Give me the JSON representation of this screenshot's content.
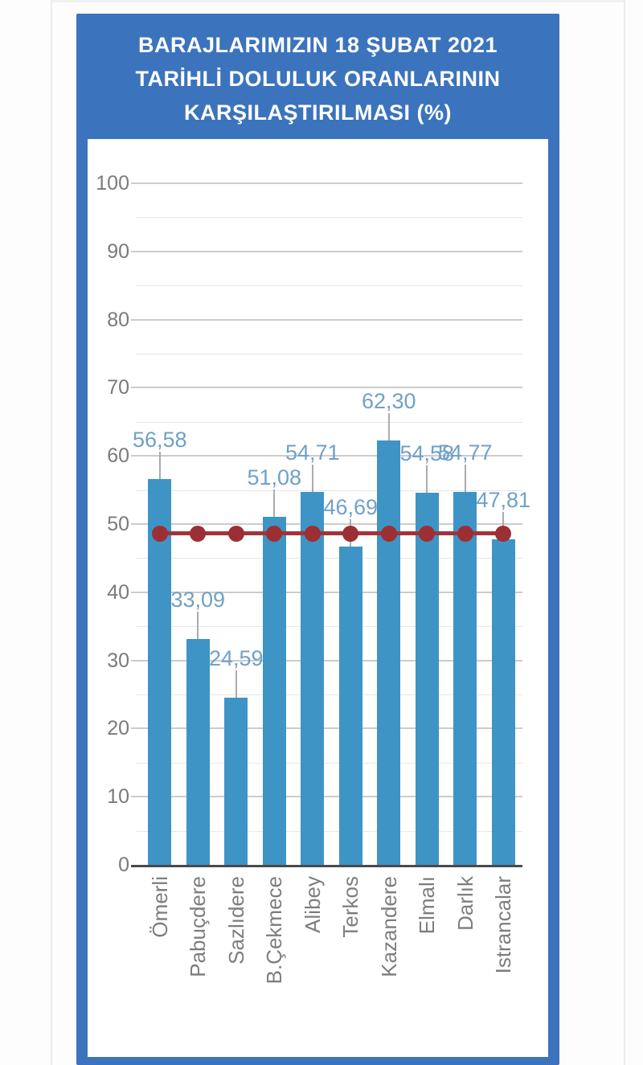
{
  "page": {
    "title_lines": [
      "BARAJLARIMIZIN 18 ŞUBAT 2021",
      "TARİHLİ DOLULUK ORANLARININ",
      "KARŞILAŞTIRILMASI (%)"
    ]
  },
  "chart_data": {
    "type": "bar",
    "title": "BARAJLARIMIZIN 18 ŞUBAT 2021 TARİHLİ DOLULUK ORANLARININ KARŞILAŞTIRILMASI (%)",
    "categories": [
      "Ömerli",
      "Pabuçdere",
      "Sazlıdere",
      "B.Çekmece",
      "Alibey",
      "Terkos",
      "Kazandere",
      "Elmalı",
      "Darlık",
      "Istrancalar"
    ],
    "values": [
      56.58,
      33.09,
      24.59,
      51.08,
      54.71,
      46.69,
      62.3,
      54.58,
      54.77,
      47.81
    ],
    "data_labels": [
      "56,58",
      "33,09",
      "24,59",
      "51,08",
      "54,71",
      "46,69",
      "62,30",
      "54,58",
      "54,77",
      "47,81"
    ],
    "average_line": {
      "value": 48.62,
      "style": "horizontal-line-with-round-markers"
    },
    "xlabel": "",
    "ylabel": "",
    "ylim": [
      0,
      100
    ],
    "y_major_ticks": [
      0,
      10,
      20,
      30,
      40,
      50,
      60,
      70,
      80,
      90,
      100
    ],
    "y_minor_step": 5,
    "grid": true,
    "legend": "none",
    "decimal_separator": ","
  },
  "colors": {
    "frame_blue": "#3b73bd",
    "title_text": "#ffffff",
    "bar_blue": "#3e94c5",
    "average_red": "#a23438",
    "marker_red": "#9c2f34",
    "value_label_blue": "#70a1c7",
    "axis_gray": "#7a7a7a",
    "grid_major": "#cccccc",
    "grid_minor": "#e7e7e7",
    "baseline_dark": "#4a4a4a",
    "leader_gray": "#ababab"
  }
}
